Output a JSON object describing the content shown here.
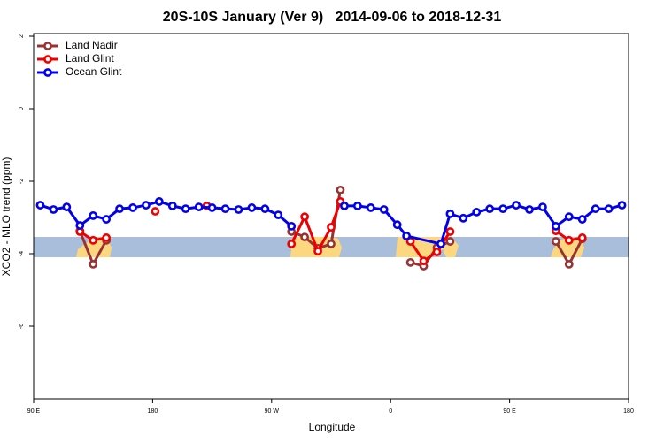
{
  "chart_data": {
    "type": "line",
    "title": "20S-10S January (Ver 9)   2014-09-06 to 2018-12-31",
    "x_label": "Longitude",
    "y_label": "XCO2 - MLO trend (ppm)",
    "xlim": [
      90,
      540
    ],
    "ylim": [
      -8,
      2
    ],
    "xticks": [
      {
        "value": 90,
        "label": "90 E"
      },
      180,
      {
        "value": 270,
        "label": "90 W"
      },
      {
        "value": 360,
        "label": "0"
      },
      {
        "value": 450,
        "label": "90 E"
      },
      {
        "value": 540,
        "label": "180"
      }
    ],
    "yticks": [
      -6,
      -4,
      -2,
      0,
      2
    ],
    "legend": "top-left",
    "series": [
      {
        "name": "Land Nadir",
        "color": "#993333",
        "x": [
          125,
          135,
          145,
          null,
          285,
          295,
          305,
          315,
          322,
          null,
          375,
          385,
          395,
          405,
          null,
          485,
          495,
          505
        ],
        "values": [
          -3.37,
          -4.29,
          -3.63,
          null,
          -3.39,
          -3.54,
          -3.85,
          -3.73,
          -2.24,
          null,
          -4.24,
          -4.34,
          -3.83,
          -3.66,
          null,
          -3.66,
          -4.29,
          -3.59
        ]
      },
      {
        "name": "Land Glint",
        "color": "#ee0000",
        "x": [
          125,
          135,
          145,
          null,
          182,
          null,
          221,
          null,
          285,
          295,
          305,
          315,
          322,
          null,
          375,
          385,
          395,
          405,
          null,
          485,
          495,
          505
        ],
        "values": [
          -3.39,
          -3.63,
          -3.56,
          null,
          -2.83,
          null,
          -2.68,
          null,
          -3.73,
          -2.98,
          -3.93,
          -3.27,
          -2.56,
          null,
          -3.66,
          -4.2,
          -3.95,
          -3.39,
          null,
          -3.37,
          -3.63,
          -3.56
        ]
      },
      {
        "name": "Ocean Glint",
        "color": "#0000ee",
        "x": [
          95,
          105,
          115,
          125,
          135,
          145,
          155,
          165,
          175,
          185,
          195,
          205,
          215,
          225,
          235,
          245,
          255,
          265,
          275,
          285,
          null,
          325,
          335,
          345,
          355,
          365,
          372,
          398,
          405,
          415,
          425,
          435,
          445,
          455,
          465,
          475,
          485,
          495,
          505,
          515,
          525,
          535
        ],
        "values": [
          -2.66,
          -2.78,
          -2.71,
          -3.22,
          -2.95,
          -3.05,
          -2.76,
          -2.73,
          -2.66,
          -2.56,
          -2.68,
          -2.76,
          -2.71,
          -2.73,
          -2.76,
          -2.78,
          -2.73,
          -2.76,
          -2.93,
          -3.24,
          null,
          -2.68,
          -2.68,
          -2.73,
          -2.78,
          -3.2,
          -3.51,
          -3.73,
          -2.9,
          -3.02,
          -2.85,
          -2.76,
          -2.76,
          -2.66,
          -2.78,
          -2.71,
          -3.24,
          -2.98,
          -3.05,
          -2.76,
          -2.76,
          -2.66
        ]
      }
    ]
  }
}
